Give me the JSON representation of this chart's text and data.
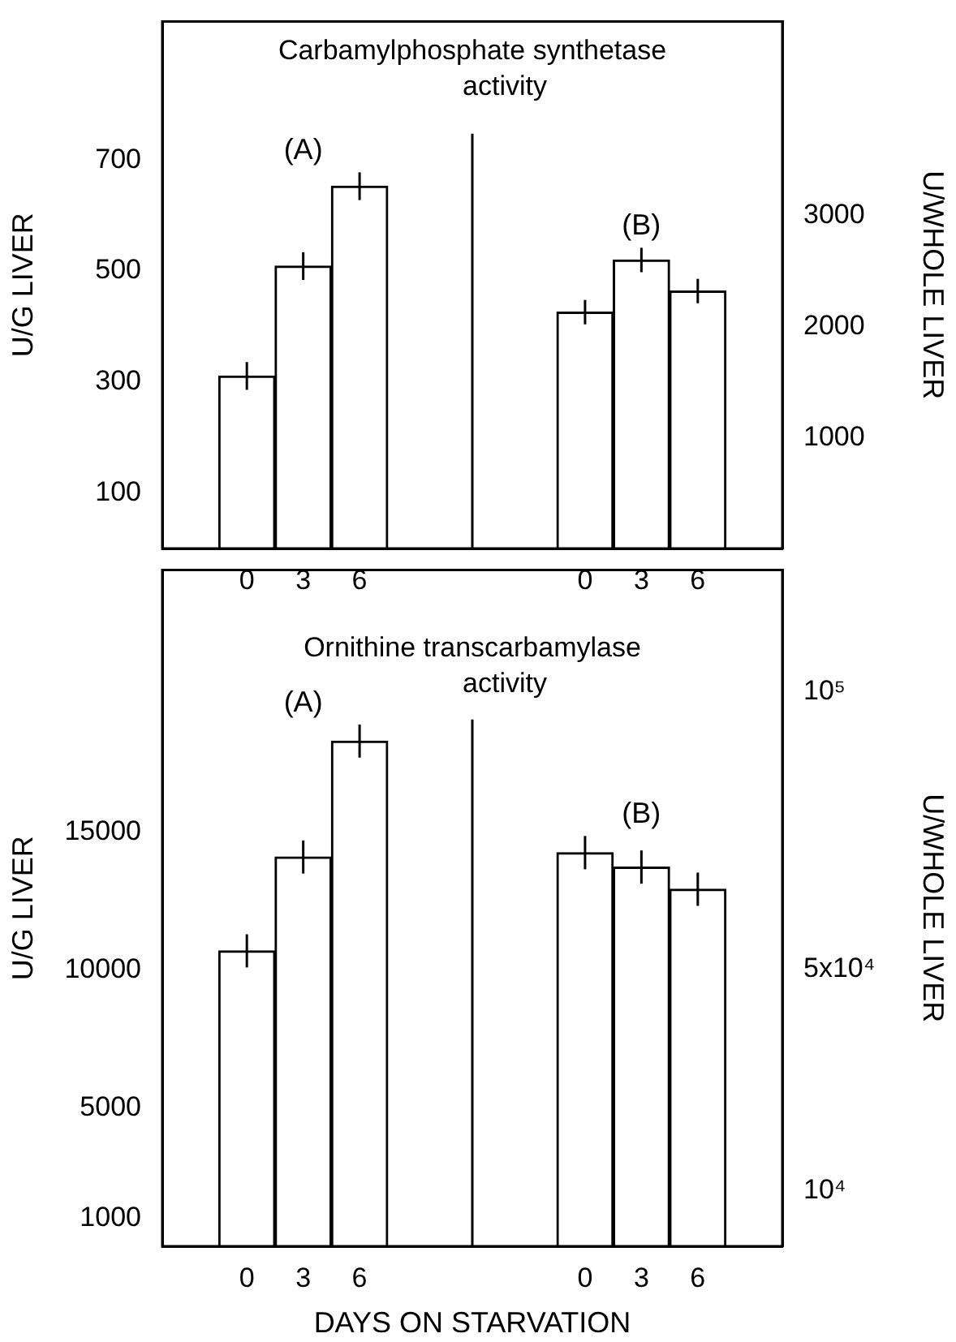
{
  "chart_data": [
    {
      "type": "bar",
      "title": "Carbamylphosphate synthetase activity",
      "ylabel": "U/G LIVER",
      "y2label": "U/WHOLE LIVER",
      "categories": [
        null,
        "0",
        "3",
        "6",
        null,
        null,
        null,
        "0",
        "3",
        "6",
        null
      ],
      "series": [
        {
          "name": "(A)",
          "color": "#ffffff",
          "values": [
            null,
            311,
            509,
            653,
            null,
            null,
            null,
            null,
            null,
            null,
            null
          ],
          "errors": [
            null,
            25,
            25,
            25,
            null,
            null,
            null,
            null,
            null,
            null,
            null
          ]
        },
        {
          "name": "(B)",
          "color": "#ffffff",
          "axis": "y2",
          "values": [
            null,
            null,
            null,
            null,
            null,
            null,
            null,
            2130,
            2600,
            2320,
            null
          ],
          "errors": [
            null,
            null,
            null,
            null,
            null,
            null,
            null,
            110,
            110,
            110,
            null
          ]
        }
      ],
      "ylim": [
        0,
        950
      ],
      "yticks": [
        100,
        300,
        500,
        700
      ],
      "y2lim": [
        0,
        4750
      ],
      "y2ticks": [
        1000,
        2000,
        3000
      ]
    },
    {
      "type": "bar",
      "title": "Ornithine transcarbamylase activity",
      "xlabel": "DAYS ON STARVATION",
      "ylabel": "U/G LIVER",
      "y2label": "U/WHOLE LIVER",
      "categories": [
        null,
        "0",
        "3",
        "6",
        null,
        null,
        null,
        "0",
        "3",
        "6",
        null
      ],
      "series": [
        {
          "name": "(A)",
          "color": "#ffffff",
          "values": [
            null,
            10700,
            14100,
            18300,
            null,
            null,
            null,
            null,
            null,
            null,
            null
          ],
          "errors": [
            null,
            600,
            600,
            600,
            null,
            null,
            null,
            null,
            null,
            null,
            null
          ]
        },
        {
          "name": "(B)",
          "color": "#ffffff",
          "axis": "y2",
          "values": [
            null,
            null,
            null,
            null,
            null,
            null,
            null,
            71000,
            68400,
            64400,
            null
          ],
          "errors": [
            null,
            null,
            null,
            null,
            null,
            null,
            null,
            3000,
            3000,
            3000,
            null
          ]
        }
      ],
      "ylim": [
        0,
        24500
      ],
      "yticks": [
        1000,
        5000,
        10000,
        15000
      ],
      "y2lim": [
        0,
        122000
      ],
      "y2ticks": [
        {
          "value": 10000,
          "label": "10⁴"
        },
        {
          "value": 50000,
          "label": "5x10⁴"
        },
        {
          "value": 100000,
          "label": "10⁵"
        }
      ]
    }
  ]
}
